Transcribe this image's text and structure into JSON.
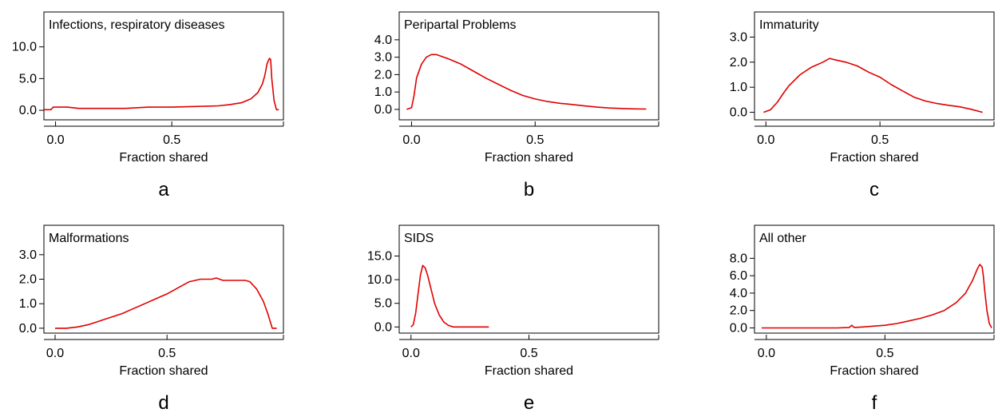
{
  "figure": {
    "line_color": "#e00000"
  },
  "chart_data": [
    {
      "type": "line",
      "panel_label": "a",
      "title": "Infections, respiratory diseases",
      "xlabel": "Fraction shared",
      "ylabel": "",
      "xlim": [
        -0.05,
        0.98
      ],
      "ylim": [
        -1.5,
        15.5
      ],
      "xticks": [
        0.0,
        0.5
      ],
      "xtick_labels": [
        "0.0",
        "0.5"
      ],
      "yticks": [
        0.0,
        5.0,
        10.0
      ],
      "ytick_labels": [
        "0.0",
        "5.0",
        "10.0"
      ],
      "series": [
        {
          "x": [
            -0.05,
            -0.02,
            -0.01,
            0.0,
            0.05,
            0.1,
            0.2,
            0.3,
            0.4,
            0.5,
            0.6,
            0.7,
            0.75,
            0.8,
            0.84,
            0.87,
            0.89,
            0.9,
            0.91,
            0.92,
            0.925,
            0.93,
            0.94,
            0.95,
            0.96
          ],
          "y": [
            0.1,
            0.1,
            0.5,
            0.5,
            0.5,
            0.3,
            0.3,
            0.3,
            0.5,
            0.5,
            0.6,
            0.7,
            0.9,
            1.2,
            1.8,
            2.8,
            4.2,
            5.5,
            7.4,
            8.2,
            8.0,
            5.0,
            1.5,
            0.1,
            0.1
          ]
        }
      ]
    },
    {
      "type": "line",
      "panel_label": "b",
      "title": "Peripartal Problems",
      "xlabel": "Fraction shared",
      "ylabel": "",
      "xlim": [
        -0.05,
        1.0
      ],
      "ylim": [
        -0.6,
        5.6
      ],
      "xticks": [
        0.0,
        0.5
      ],
      "xtick_labels": [
        "0.0",
        "0.5"
      ],
      "yticks": [
        0.0,
        1.0,
        2.0,
        3.0,
        4.0
      ],
      "ytick_labels": [
        "0.0",
        "1.0",
        "2.0",
        "3.0",
        "4.0"
      ],
      "series": [
        {
          "x": [
            -0.02,
            0.0,
            0.01,
            0.02,
            0.04,
            0.06,
            0.08,
            0.1,
            0.15,
            0.2,
            0.25,
            0.3,
            0.35,
            0.4,
            0.45,
            0.5,
            0.55,
            0.6,
            0.65,
            0.7,
            0.75,
            0.8,
            0.85,
            0.9,
            0.95
          ],
          "y": [
            0.0,
            0.1,
            0.8,
            1.8,
            2.6,
            3.0,
            3.15,
            3.15,
            2.9,
            2.6,
            2.2,
            1.8,
            1.45,
            1.1,
            0.8,
            0.6,
            0.45,
            0.35,
            0.28,
            0.2,
            0.13,
            0.08,
            0.05,
            0.03,
            0.02
          ]
        }
      ]
    },
    {
      "type": "line",
      "panel_label": "c",
      "title": "Immaturity",
      "xlabel": "Fraction shared",
      "ylabel": "",
      "xlim": [
        -0.05,
        1.0
      ],
      "ylim": [
        -0.3,
        4.0
      ],
      "xticks": [
        0.0,
        0.5
      ],
      "xtick_labels": [
        "0.0",
        "0.5"
      ],
      "yticks": [
        0.0,
        1.0,
        2.0,
        3.0
      ],
      "ytick_labels": [
        "0.0",
        "1.0",
        "2.0",
        "3.0"
      ],
      "series": [
        {
          "x": [
            -0.01,
            0.02,
            0.05,
            0.08,
            0.1,
            0.15,
            0.2,
            0.25,
            0.28,
            0.3,
            0.35,
            0.4,
            0.45,
            0.5,
            0.55,
            0.6,
            0.65,
            0.7,
            0.75,
            0.8,
            0.85,
            0.9,
            0.95
          ],
          "y": [
            0.0,
            0.1,
            0.4,
            0.8,
            1.05,
            1.5,
            1.8,
            2.0,
            2.15,
            2.1,
            2.0,
            1.85,
            1.6,
            1.4,
            1.1,
            0.85,
            0.6,
            0.45,
            0.35,
            0.28,
            0.22,
            0.12,
            0.0
          ]
        }
      ]
    },
    {
      "type": "line",
      "panel_label": "d",
      "title": "Malformations",
      "xlabel": "Fraction shared",
      "ylabel": "",
      "xlim": [
        -0.05,
        1.02
      ],
      "ylim": [
        -0.2,
        4.2
      ],
      "xticks": [
        0.0,
        0.5
      ],
      "xtick_labels": [
        "0.0",
        "0.5"
      ],
      "yticks": [
        0.0,
        1.0,
        2.0,
        3.0
      ],
      "ytick_labels": [
        "0.0",
        "1.0",
        "2.0",
        "3.0"
      ],
      "series": [
        {
          "x": [
            0.0,
            0.05,
            0.1,
            0.15,
            0.2,
            0.25,
            0.3,
            0.35,
            0.4,
            0.45,
            0.5,
            0.55,
            0.6,
            0.65,
            0.7,
            0.72,
            0.75,
            0.8,
            0.85,
            0.87,
            0.9,
            0.93,
            0.95,
            0.97,
            0.99
          ],
          "y": [
            0.0,
            0.0,
            0.05,
            0.15,
            0.3,
            0.45,
            0.6,
            0.8,
            1.0,
            1.2,
            1.4,
            1.65,
            1.9,
            2.0,
            2.0,
            2.05,
            1.95,
            1.95,
            1.95,
            1.9,
            1.6,
            1.1,
            0.6,
            0.0,
            0.0
          ]
        }
      ]
    },
    {
      "type": "line",
      "panel_label": "e",
      "title": "SIDS",
      "xlabel": "Fraction shared",
      "ylabel": "",
      "xlim": [
        -0.05,
        1.05
      ],
      "ylim": [
        -1.3,
        21.5
      ],
      "xticks": [
        0.0,
        0.5
      ],
      "xtick_labels": [
        "0.0",
        "0.5"
      ],
      "yticks": [
        0.0,
        5.0,
        10.0,
        15.0
      ],
      "ytick_labels": [
        "0.0",
        "5.0",
        "10.0",
        "15.0"
      ],
      "series": [
        {
          "x": [
            0.0,
            0.01,
            0.02,
            0.03,
            0.04,
            0.05,
            0.06,
            0.07,
            0.08,
            0.09,
            0.1,
            0.12,
            0.14,
            0.16,
            0.18,
            0.2,
            0.25,
            0.3,
            0.33
          ],
          "y": [
            0.0,
            0.5,
            3.0,
            7.0,
            11.0,
            13.0,
            12.5,
            11.0,
            9.0,
            7.0,
            5.0,
            2.5,
            1.0,
            0.3,
            0.0,
            0.0,
            0.0,
            0.0,
            0.0
          ]
        }
      ]
    },
    {
      "type": "line",
      "panel_label": "f",
      "title": "All other",
      "xlabel": "Fraction shared",
      "ylabel": "",
      "xlim": [
        -0.05,
        0.96
      ],
      "ylim": [
        -0.6,
        11.8
      ],
      "xticks": [
        0.0,
        0.5
      ],
      "xtick_labels": [
        "0.0",
        "0.5"
      ],
      "yticks": [
        0.0,
        2.0,
        4.0,
        6.0,
        8.0
      ],
      "ytick_labels": [
        "0.0",
        "2.0",
        "4.0",
        "6.0",
        "8.0"
      ],
      "series": [
        {
          "x": [
            -0.02,
            0.0,
            0.1,
            0.2,
            0.3,
            0.35,
            0.36,
            0.37,
            0.4,
            0.5,
            0.55,
            0.6,
            0.65,
            0.7,
            0.75,
            0.8,
            0.84,
            0.87,
            0.89,
            0.9,
            0.91,
            0.915,
            0.92,
            0.93,
            0.94,
            0.95
          ],
          "y": [
            0.0,
            0.0,
            0.0,
            0.0,
            0.0,
            0.05,
            0.3,
            0.05,
            0.1,
            0.3,
            0.5,
            0.8,
            1.1,
            1.5,
            2.0,
            2.9,
            4.0,
            5.5,
            6.8,
            7.3,
            7.0,
            6.0,
            4.5,
            2.0,
            0.5,
            0.0
          ]
        }
      ]
    }
  ]
}
